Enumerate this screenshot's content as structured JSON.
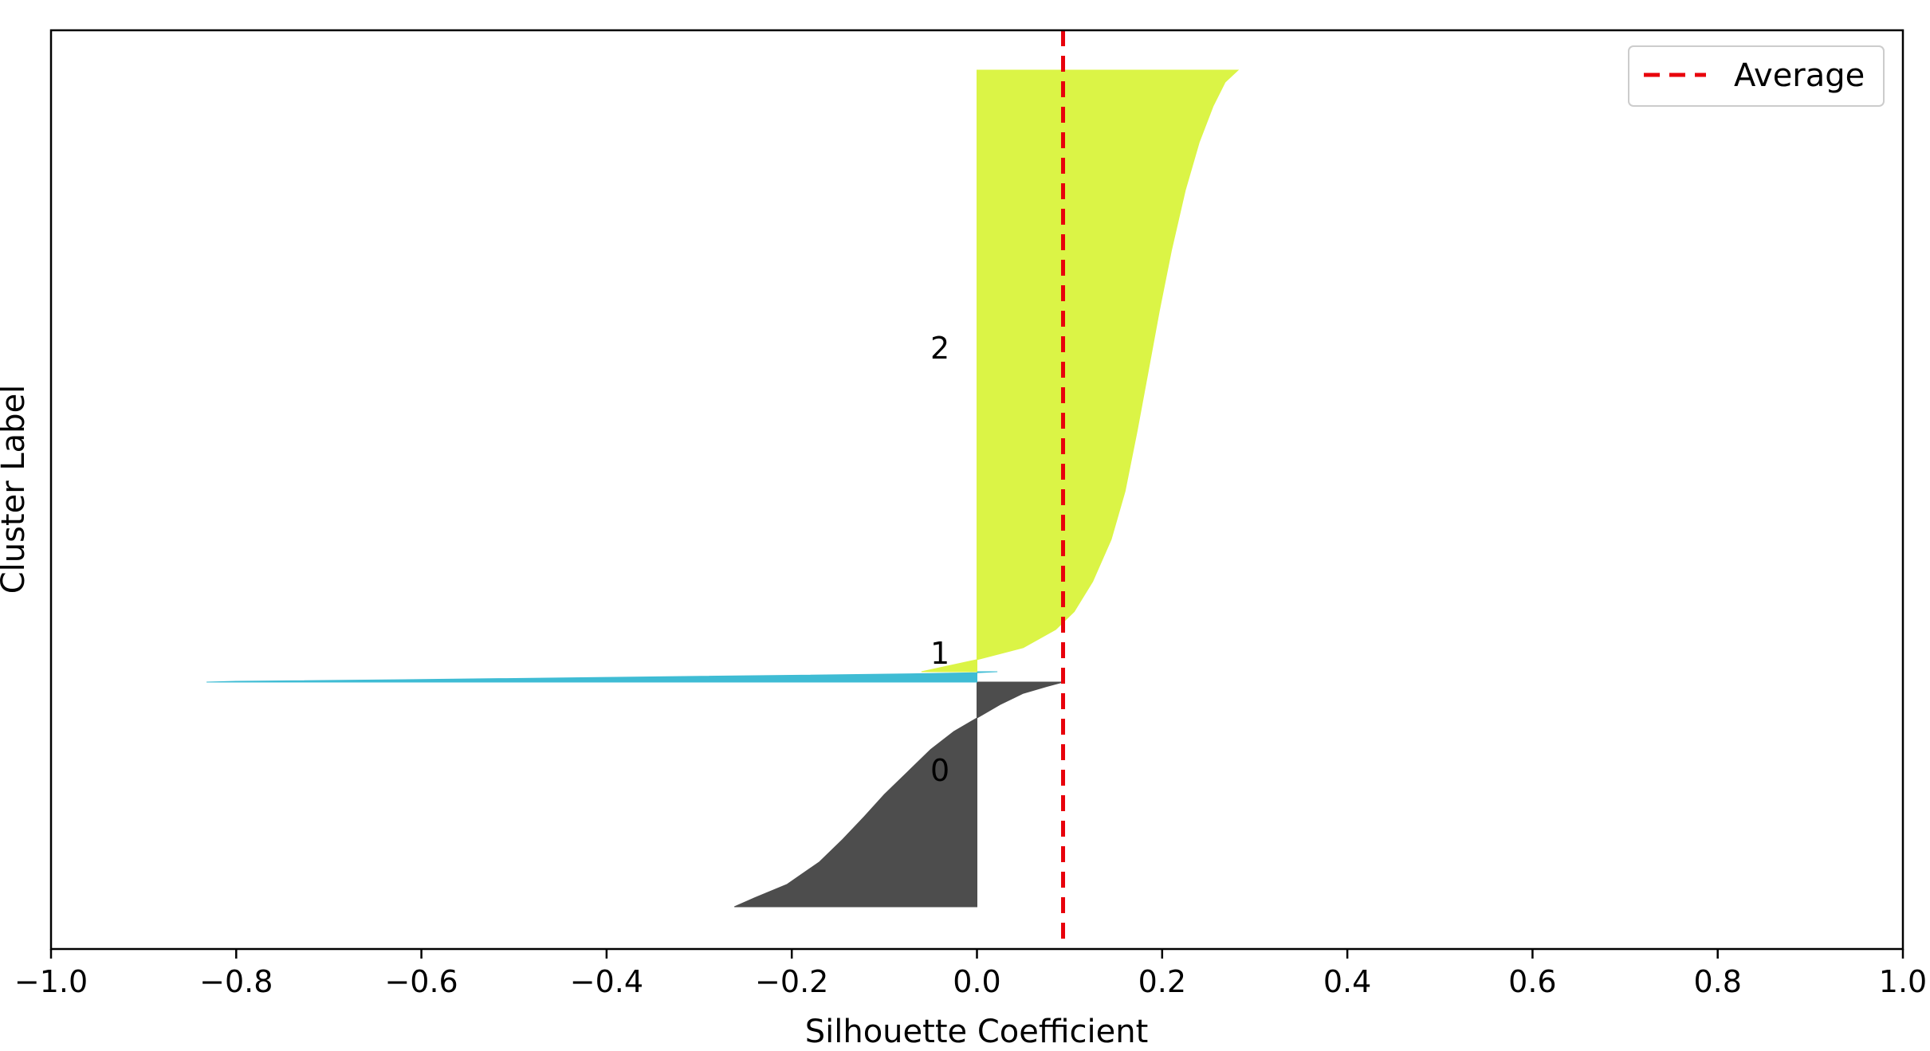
{
  "chart_data": {
    "type": "area",
    "xlabel": "Silhouette Coefficient",
    "ylabel": "Cluster Label",
    "xlim": [
      -1.0,
      1.0
    ],
    "x_ticks": [
      "−1.0",
      "−0.8",
      "−0.6",
      "−0.4",
      "−0.2",
      "0.0",
      "0.2",
      "0.4",
      "0.6",
      "0.8",
      "1.0"
    ],
    "x_tick_values": [
      -1.0,
      -0.8,
      -0.6,
      -0.4,
      -0.2,
      0.0,
      0.2,
      0.4,
      0.6,
      0.8,
      1.0
    ],
    "grid": false,
    "legend": {
      "position": "top-right",
      "entries": [
        "Average"
      ]
    },
    "average_line": {
      "label": "Average",
      "x": 0.093,
      "color": "#e8000b",
      "style": "dashed"
    },
    "clusters": [
      {
        "label": "0",
        "color": "#4d4d4d",
        "profile": [
          [
            0.0,
            -0.262
          ],
          [
            0.04,
            -0.24
          ],
          [
            0.1,
            -0.205
          ],
          [
            0.2,
            -0.17
          ],
          [
            0.3,
            -0.145
          ],
          [
            0.4,
            -0.122
          ],
          [
            0.5,
            -0.1
          ],
          [
            0.6,
            -0.075
          ],
          [
            0.7,
            -0.05
          ],
          [
            0.78,
            -0.025
          ],
          [
            0.84,
            0.0
          ],
          [
            0.9,
            0.025
          ],
          [
            0.95,
            0.05
          ],
          [
            0.98,
            0.075
          ],
          [
            1.0,
            0.093
          ]
        ]
      },
      {
        "label": "1",
        "color": "#3fbcd4",
        "profile": [
          [
            0.0,
            -0.832
          ],
          [
            0.08,
            -0.8
          ],
          [
            0.25,
            -0.6
          ],
          [
            0.45,
            -0.4
          ],
          [
            0.65,
            -0.2
          ],
          [
            0.82,
            -0.05
          ],
          [
            0.9,
            0.0
          ],
          [
            1.0,
            0.022
          ]
        ]
      },
      {
        "label": "2",
        "color": "#dbf446",
        "profile": [
          [
            0.0,
            -0.06
          ],
          [
            0.02,
            0.0
          ],
          [
            0.04,
            0.05
          ],
          [
            0.07,
            0.085
          ],
          [
            0.1,
            0.105
          ],
          [
            0.15,
            0.125
          ],
          [
            0.22,
            0.145
          ],
          [
            0.3,
            0.16
          ],
          [
            0.4,
            0.173
          ],
          [
            0.5,
            0.185
          ],
          [
            0.6,
            0.197
          ],
          [
            0.7,
            0.21
          ],
          [
            0.8,
            0.225
          ],
          [
            0.88,
            0.24
          ],
          [
            0.94,
            0.255
          ],
          [
            0.98,
            0.268
          ],
          [
            1.0,
            0.282
          ]
        ]
      }
    ]
  }
}
